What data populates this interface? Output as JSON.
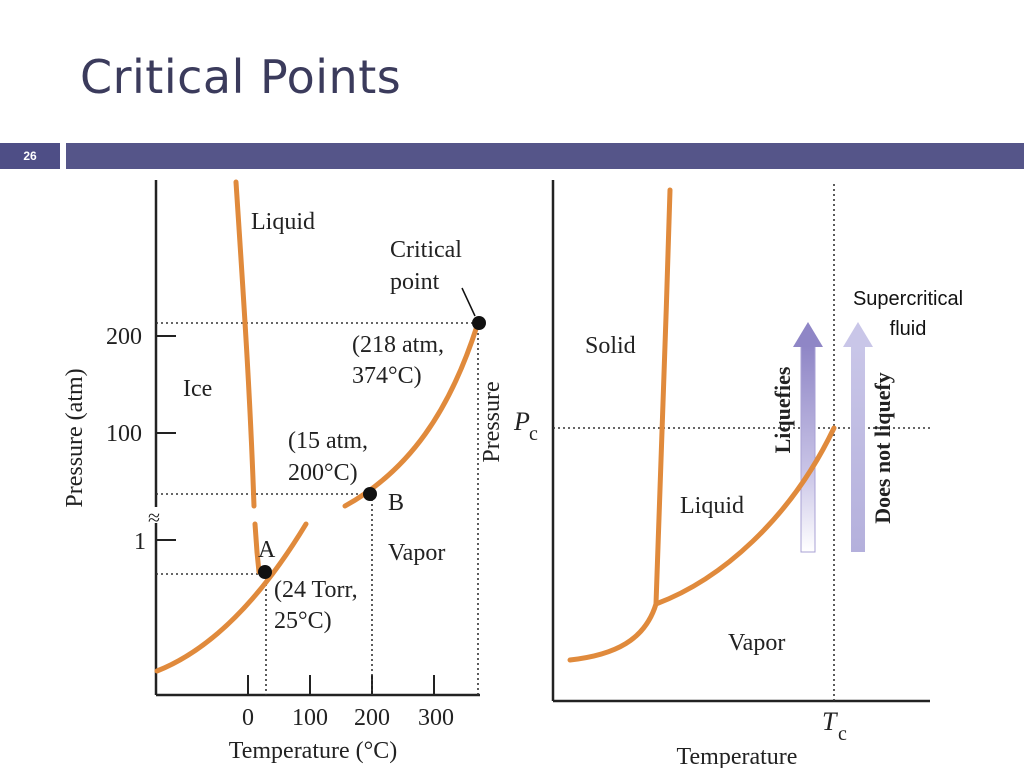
{
  "slide": {
    "title": "Critical Points",
    "number": "26"
  },
  "left_diagram": {
    "y_axis_label": "Pressure (atm)",
    "x_axis_label": "Temperature (°C)",
    "y_ticks": [
      "200",
      "100",
      "1"
    ],
    "x_ticks": [
      "0",
      "100",
      "200",
      "300"
    ],
    "regions": {
      "liquid": "Liquid",
      "ice": "Ice",
      "vapor": "Vapor"
    },
    "critical_point": {
      "title_line1": "Critical",
      "title_line2": "point",
      "value_line1": "(218 atm,",
      "value_line2": "374°C)"
    },
    "point_b": {
      "label": "B",
      "line1": "(15 atm,",
      "line2": "200°C)"
    },
    "point_a": {
      "label": "A",
      "line1": "(24 Torr,",
      "line2": "25°C)"
    },
    "curve_color": "#e08a3c",
    "axis_break_symbol": "≈"
  },
  "right_diagram": {
    "y_axis_label": "Pressure",
    "x_axis_label": "Temperature",
    "pc_label": "P",
    "pc_subscript": "c",
    "tc_label": "T",
    "tc_subscript": "c",
    "regions": {
      "solid": "Solid",
      "liquid": "Liquid",
      "vapor": "Vapor"
    },
    "arrow_liquefies": "Liquefies",
    "arrow_not_liquefy": "Does not liquefy",
    "supercritical_line1": "Supercritical",
    "supercritical_line2": "fluid",
    "arrow_color_dark": "#8f86c6",
    "arrow_color_light": "#c9c6e8"
  }
}
